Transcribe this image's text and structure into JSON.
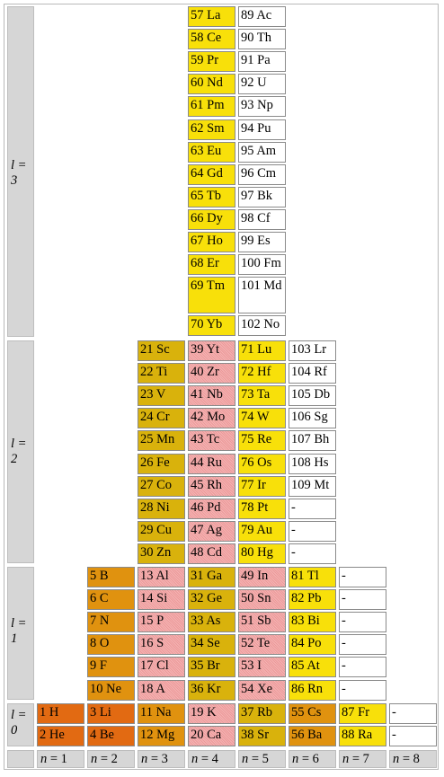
{
  "colors": {
    "s": "#e26a12",
    "p": "#e0920f",
    "d": "#d9b20c",
    "f": "#f8e00a",
    "g": "#f2a6a6",
    "empty": "#ffffff",
    "label": "#d6d6d6"
  },
  "l_labels": [
    {
      "text": "l =\n3",
      "block": 3
    },
    {
      "text": "l =\n2",
      "block": 2
    },
    {
      "text": "l =\n1",
      "block": 1
    },
    {
      "text": "l =\n0",
      "block": 0
    }
  ],
  "n_labels": [
    "n = 1",
    "n = 2",
    "n = 3",
    "n = 4",
    "n = 5",
    "n = 6",
    "n = 7",
    "n = 8"
  ],
  "blocks": {
    "f": [
      [
        "57 La",
        "89 Ac"
      ],
      [
        "58 Ce",
        "90 Th"
      ],
      [
        "59 Pr",
        "91 Pa"
      ],
      [
        "60 Nd",
        "92 U"
      ],
      [
        "61 Pm",
        "93 Np"
      ],
      [
        "62 Sm",
        "94 Pu"
      ],
      [
        "63 Eu",
        "95 Am"
      ],
      [
        "64 Gd",
        "96 Cm"
      ],
      [
        "65 Tb",
        "97 Bk"
      ],
      [
        "66 Dy",
        "98 Cf"
      ],
      [
        "67 Ho",
        "99 Es"
      ],
      [
        "68 Er",
        "100 Fm"
      ],
      [
        "69 Tm",
        "101 Md"
      ],
      [
        "70 Yb",
        "102 No"
      ]
    ],
    "d": [
      [
        "21 Sc",
        "39 Yt",
        "71 Lu",
        "103 Lr"
      ],
      [
        "22 Ti",
        "40 Zr",
        "72 Hf",
        "104 Rf"
      ],
      [
        "23 V",
        "41 Nb",
        "73 Ta",
        "105 Db"
      ],
      [
        "24 Cr",
        "42 Mo",
        "74 W",
        "106 Sg"
      ],
      [
        "25 Mn",
        "43 Tc",
        "75 Re",
        "107 Bh"
      ],
      [
        "26 Fe",
        "44 Ru",
        "76 Os",
        "108 Hs"
      ],
      [
        "27 Co",
        "45 Rh",
        "77 Ir",
        "109 Mt"
      ],
      [
        "28 Ni",
        "46 Pd",
        "78 Pt",
        "-"
      ],
      [
        "29 Cu",
        "47 Ag",
        "79 Au",
        "-"
      ],
      [
        "30 Zn",
        "48 Cd",
        "80 Hg",
        "-"
      ]
    ],
    "p": [
      [
        "5 B",
        "13 Al",
        "31 Ga",
        "49 In",
        "81 Tl",
        "-"
      ],
      [
        "6 C",
        "14 Si",
        "32 Ge",
        "50 Sn",
        "82 Pb",
        "-"
      ],
      [
        "7 N",
        "15 P",
        "33 As",
        "51 Sb",
        "83 Bi",
        "-"
      ],
      [
        "8 O",
        "16 S",
        "34 Se",
        "52 Te",
        "84 Po",
        "-"
      ],
      [
        "9 F",
        "17 Cl",
        "35 Br",
        "53 I",
        "85 At",
        "-"
      ],
      [
        "10 Ne",
        "18 A",
        "36 Kr",
        "54 Xe",
        "86 Rn",
        "-"
      ]
    ],
    "s": [
      [
        "1 H",
        "3 Li",
        "11 Na",
        "19 K",
        "37 Rb",
        "55 Cs",
        "87 Fr",
        "-"
      ],
      [
        "2 He",
        "4 Be",
        "12 Mg",
        "20 Ca",
        "38 Sr",
        "56 Ba",
        "88 Ra",
        "-"
      ]
    ]
  },
  "color_map": {
    "f": [
      [
        "f",
        "empty"
      ]
    ],
    "d": [
      [
        "d",
        "g",
        "f",
        "empty"
      ]
    ],
    "p": [
      [
        "p",
        "g",
        "d",
        "g",
        "f",
        "empty"
      ]
    ],
    "s": [
      [
        "s",
        "s",
        "p",
        "g",
        "d",
        "p",
        "f",
        "empty"
      ]
    ]
  }
}
